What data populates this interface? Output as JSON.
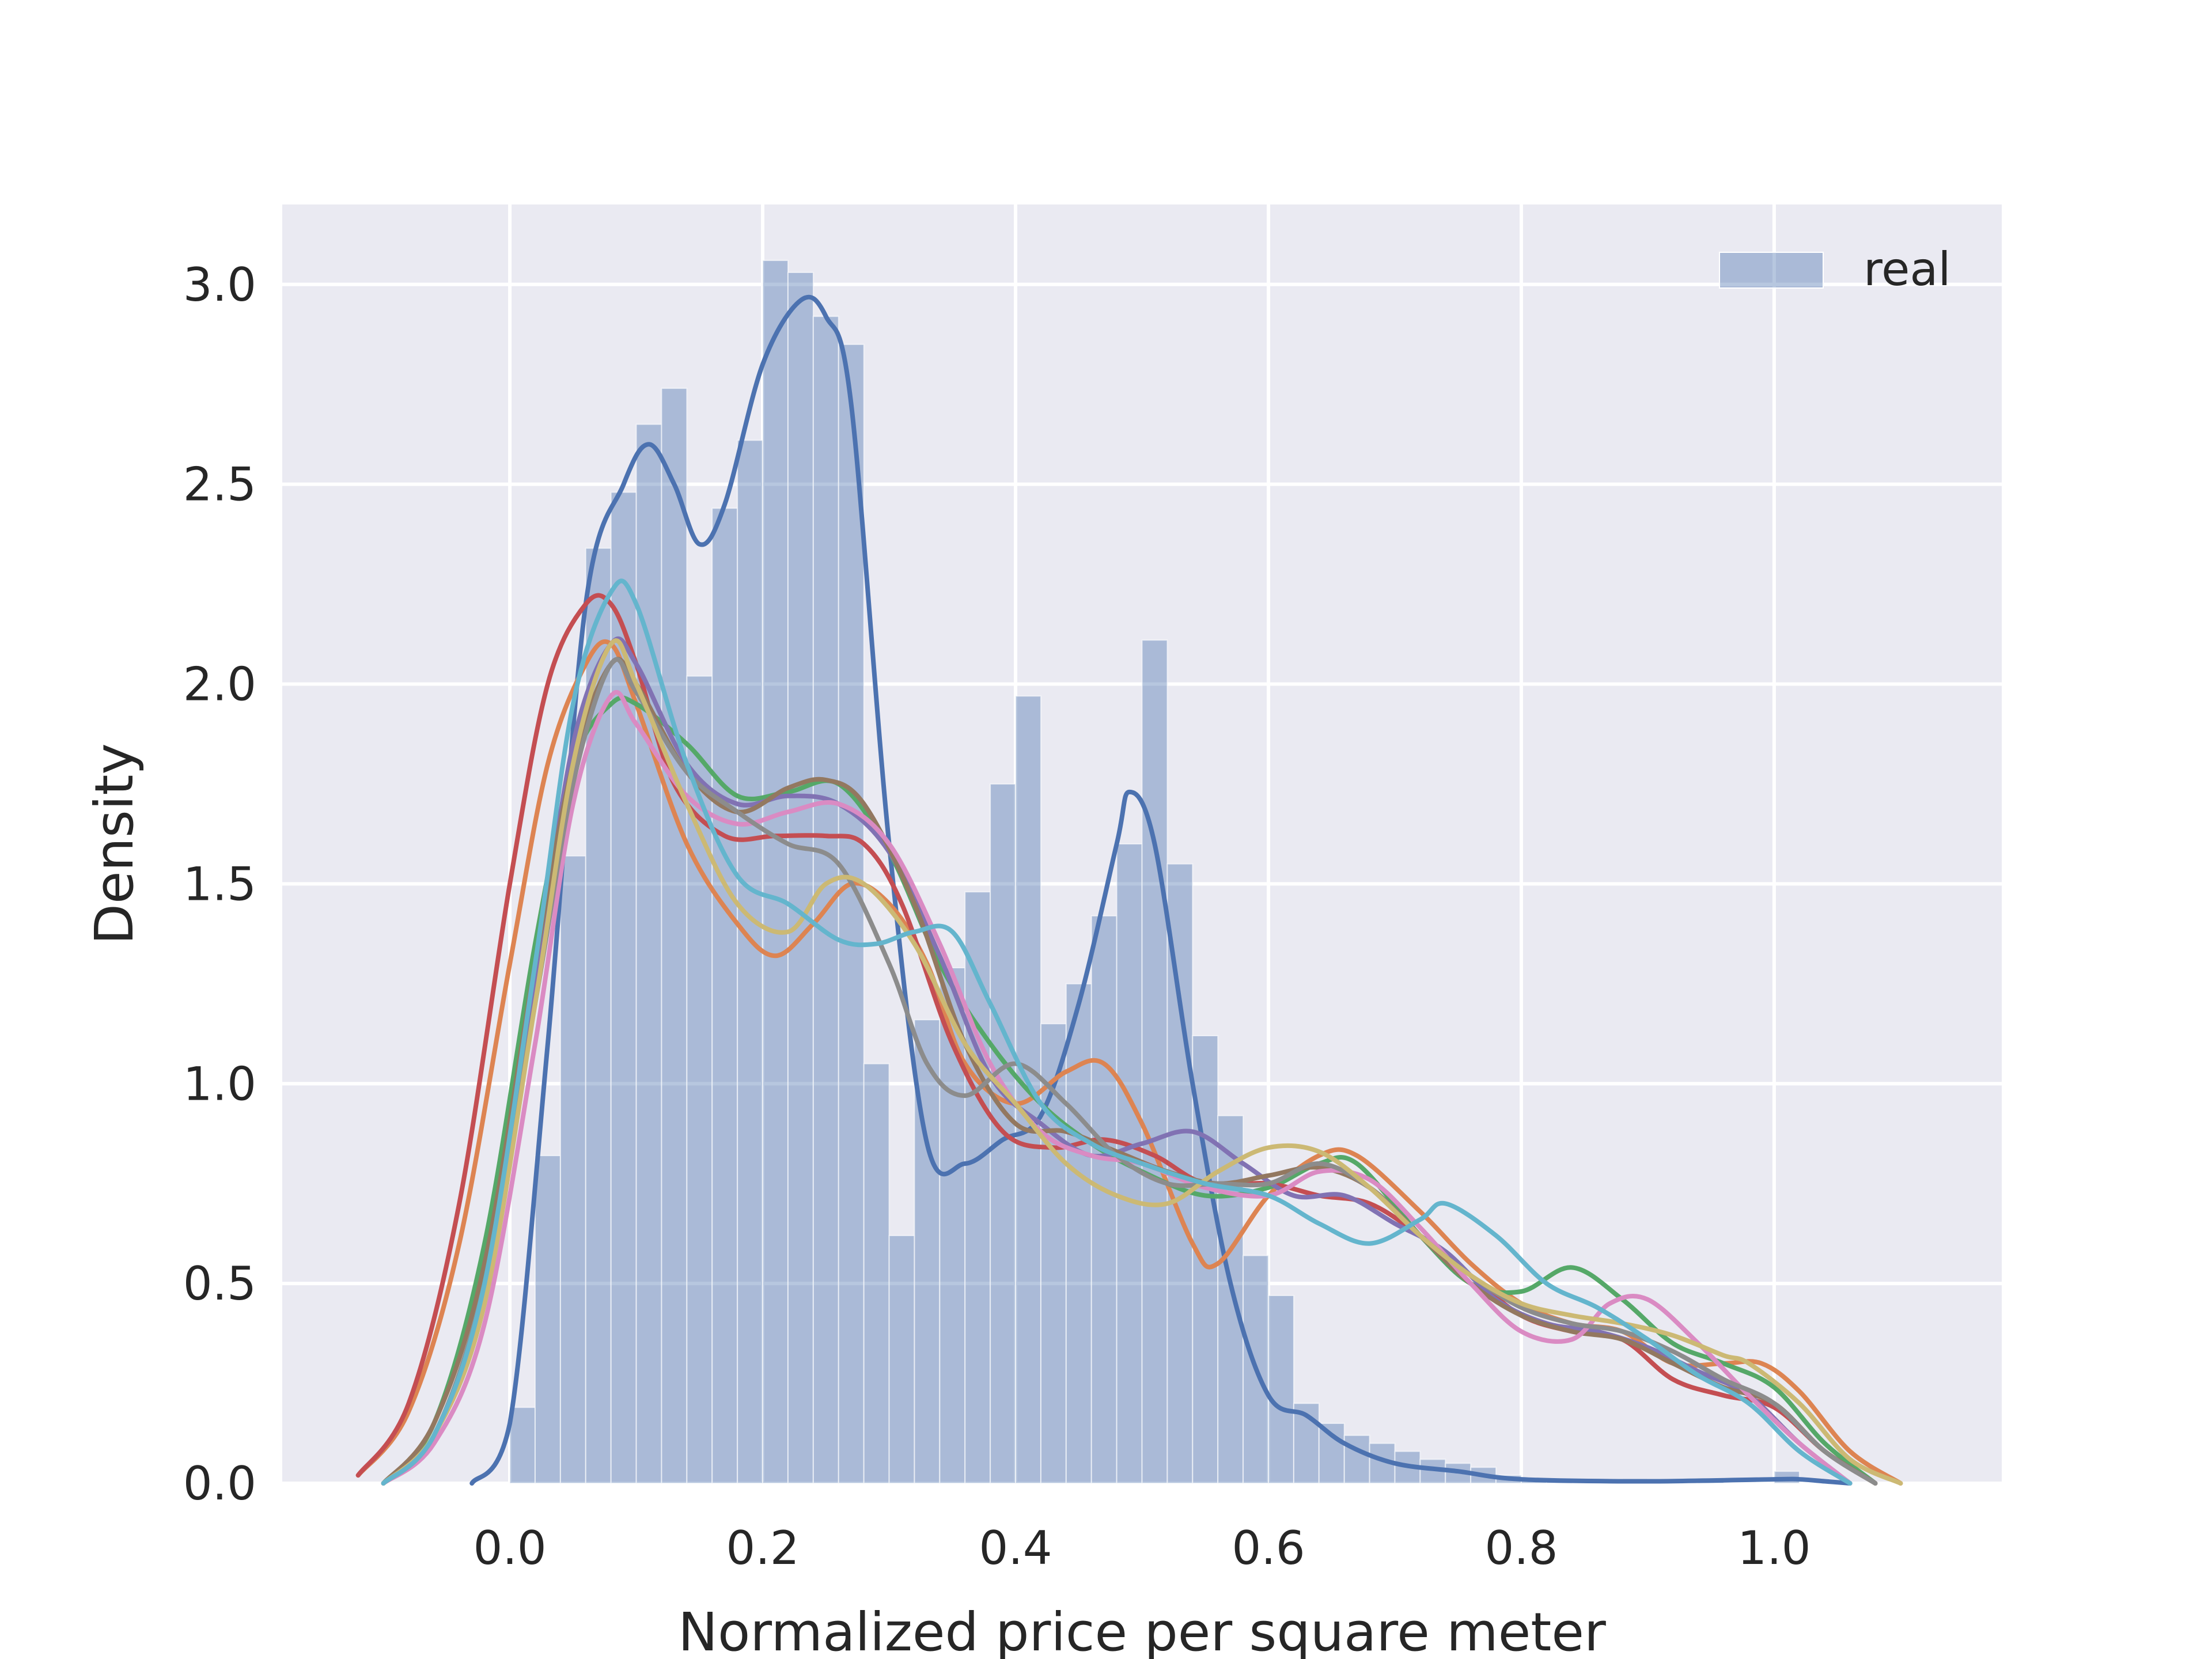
{
  "chart_data": {
    "type": "histogram+kde",
    "title": "",
    "xlabel": "Normalized price per square meter",
    "ylabel": "Density",
    "xlim": [
      -0.18,
      1.18
    ],
    "ylim": [
      0,
      3.2
    ],
    "xticks": [
      0.0,
      0.2,
      0.4,
      0.6,
      0.8,
      1.0
    ],
    "xtick_labels": [
      "0.0",
      "0.2",
      "0.4",
      "0.6",
      "0.8",
      "1.0"
    ],
    "yticks": [
      0.0,
      0.5,
      1.0,
      1.5,
      2.0,
      2.5,
      3.0
    ],
    "ytick_labels": [
      "0.0",
      "0.5",
      "1.0",
      "1.5",
      "2.0",
      "2.5",
      "3.0"
    ],
    "grid": true,
    "background": "#eaeaf2",
    "legend": {
      "position": "top-right",
      "entries": [
        {
          "label": "real",
          "color": "#4c72b0"
        }
      ]
    },
    "histogram": {
      "name": "real",
      "color": "#4c72b0",
      "bin_edges_start": 0.0,
      "bin_width": 0.02,
      "values": [
        0.19,
        0.82,
        1.57,
        2.34,
        2.48,
        2.65,
        2.74,
        2.02,
        2.44,
        2.61,
        3.06,
        3.03,
        2.92,
        2.85,
        1.05,
        0.62,
        1.16,
        1.29,
        1.48,
        1.75,
        1.97,
        1.15,
        1.25,
        1.42,
        1.6,
        2.11,
        1.55,
        1.12,
        0.92,
        0.57,
        0.47,
        0.2,
        0.15,
        0.12,
        0.1,
        0.08,
        0.06,
        0.05,
        0.04,
        0.02,
        0.01,
        0.01,
        0.0,
        0.01,
        0.0,
        0.01,
        0.0,
        0.01,
        0.0,
        0.0,
        0.03
      ]
    },
    "kde_series": [
      {
        "color": "#4c72b0",
        "x": [
          -0.03,
          0.0,
          0.03,
          0.06,
          0.09,
          0.11,
          0.13,
          0.15,
          0.17,
          0.2,
          0.23,
          0.25,
          0.27,
          0.3,
          0.33,
          0.36,
          0.39,
          0.42,
          0.45,
          0.48,
          0.49,
          0.51,
          0.54,
          0.57,
          0.6,
          0.63,
          0.66,
          0.7,
          0.75,
          0.8,
          0.9,
          1.0,
          1.02,
          1.04,
          1.06
        ],
        "y": [
          0.0,
          0.15,
          1.1,
          2.2,
          2.5,
          2.6,
          2.5,
          2.35,
          2.45,
          2.8,
          2.96,
          2.92,
          2.7,
          1.6,
          0.85,
          0.8,
          0.86,
          0.92,
          1.2,
          1.6,
          1.73,
          1.6,
          1.0,
          0.5,
          0.22,
          0.17,
          0.1,
          0.05,
          0.03,
          0.01,
          0.005,
          0.01,
          0.01,
          0.005,
          0.0
        ]
      },
      {
        "color": "#dd8452",
        "x": [
          -0.12,
          -0.08,
          -0.04,
          0.0,
          0.03,
          0.06,
          0.08,
          0.1,
          0.14,
          0.18,
          0.21,
          0.24,
          0.27,
          0.3,
          0.33,
          0.36,
          0.4,
          0.44,
          0.47,
          0.5,
          0.54,
          0.56,
          0.6,
          0.64,
          0.67,
          0.72,
          0.76,
          0.8,
          0.84,
          0.88,
          0.92,
          0.96,
          0.99,
          1.02,
          1.06,
          1.1
        ],
        "y": [
          0.02,
          0.18,
          0.6,
          1.3,
          1.8,
          2.05,
          2.1,
          1.95,
          1.6,
          1.4,
          1.32,
          1.4,
          1.5,
          1.45,
          1.3,
          1.05,
          0.95,
          1.03,
          1.05,
          0.9,
          0.6,
          0.55,
          0.72,
          0.82,
          0.82,
          0.68,
          0.55,
          0.45,
          0.4,
          0.38,
          0.3,
          0.3,
          0.3,
          0.23,
          0.08,
          0.0
        ]
      },
      {
        "color": "#55a868",
        "x": [
          -0.1,
          -0.06,
          -0.02,
          0.02,
          0.05,
          0.08,
          0.1,
          0.14,
          0.18,
          0.22,
          0.26,
          0.3,
          0.34,
          0.38,
          0.42,
          0.46,
          0.5,
          0.55,
          0.6,
          0.64,
          0.67,
          0.72,
          0.76,
          0.8,
          0.84,
          0.88,
          0.92,
          0.96,
          1.0,
          1.04,
          1.08
        ],
        "y": [
          0.0,
          0.15,
          0.6,
          1.35,
          1.8,
          1.95,
          1.95,
          1.85,
          1.72,
          1.73,
          1.75,
          1.58,
          1.3,
          1.1,
          0.95,
          0.85,
          0.78,
          0.72,
          0.74,
          0.8,
          0.8,
          0.62,
          0.5,
          0.48,
          0.54,
          0.46,
          0.35,
          0.3,
          0.24,
          0.1,
          0.0
        ]
      },
      {
        "color": "#c44e52",
        "x": [
          -0.12,
          -0.08,
          -0.04,
          0.0,
          0.03,
          0.06,
          0.08,
          0.1,
          0.13,
          0.17,
          0.21,
          0.25,
          0.28,
          0.31,
          0.35,
          0.39,
          0.43,
          0.47,
          0.51,
          0.55,
          0.6,
          0.64,
          0.68,
          0.72,
          0.76,
          0.8,
          0.84,
          0.88,
          0.92,
          0.96,
          1.0,
          1.04,
          1.08
        ],
        "y": [
          0.02,
          0.2,
          0.7,
          1.5,
          2.0,
          2.2,
          2.2,
          2.05,
          1.75,
          1.62,
          1.62,
          1.62,
          1.6,
          1.45,
          1.1,
          0.88,
          0.84,
          0.86,
          0.82,
          0.75,
          0.75,
          0.72,
          0.7,
          0.62,
          0.52,
          0.42,
          0.38,
          0.36,
          0.26,
          0.22,
          0.19,
          0.08,
          0.0
        ]
      },
      {
        "color": "#8172b3",
        "x": [
          -0.1,
          -0.06,
          -0.02,
          0.02,
          0.05,
          0.08,
          0.1,
          0.14,
          0.18,
          0.22,
          0.26,
          0.3,
          0.34,
          0.38,
          0.42,
          0.46,
          0.5,
          0.54,
          0.58,
          0.62,
          0.66,
          0.7,
          0.74,
          0.78,
          0.82,
          0.86,
          0.9,
          0.94,
          0.98,
          1.02,
          1.06
        ],
        "y": [
          0.0,
          0.12,
          0.5,
          1.25,
          1.85,
          2.1,
          2.05,
          1.8,
          1.7,
          1.72,
          1.7,
          1.58,
          1.32,
          1.02,
          0.9,
          0.82,
          0.85,
          0.88,
          0.8,
          0.72,
          0.72,
          0.65,
          0.58,
          0.46,
          0.4,
          0.38,
          0.34,
          0.28,
          0.22,
          0.1,
          0.0
        ]
      },
      {
        "color": "#937860",
        "x": [
          -0.1,
          -0.06,
          -0.02,
          0.02,
          0.05,
          0.08,
          0.1,
          0.14,
          0.18,
          0.22,
          0.25,
          0.28,
          0.32,
          0.36,
          0.4,
          0.44,
          0.48,
          0.52,
          0.56,
          0.6,
          0.64,
          0.68,
          0.72,
          0.76,
          0.8,
          0.84,
          0.88,
          0.92,
          0.96,
          1.0,
          1.04,
          1.08
        ],
        "y": [
          0.0,
          0.15,
          0.55,
          1.3,
          1.8,
          2.05,
          2.0,
          1.78,
          1.68,
          1.74,
          1.76,
          1.7,
          1.45,
          1.1,
          0.9,
          0.88,
          0.83,
          0.78,
          0.75,
          0.77,
          0.79,
          0.74,
          0.62,
          0.5,
          0.42,
          0.38,
          0.36,
          0.3,
          0.24,
          0.2,
          0.08,
          0.0
        ]
      },
      {
        "color": "#da8bc3",
        "x": [
          -0.1,
          -0.06,
          -0.02,
          0.02,
          0.05,
          0.08,
          0.1,
          0.14,
          0.18,
          0.22,
          0.26,
          0.3,
          0.34,
          0.38,
          0.42,
          0.46,
          0.5,
          0.55,
          0.6,
          0.64,
          0.68,
          0.72,
          0.76,
          0.8,
          0.84,
          0.87,
          0.9,
          0.94,
          0.98,
          1.02,
          1.06
        ],
        "y": [
          0.0,
          0.1,
          0.4,
          1.1,
          1.7,
          1.97,
          1.9,
          1.72,
          1.65,
          1.68,
          1.7,
          1.6,
          1.35,
          1.05,
          0.88,
          0.82,
          0.8,
          0.74,
          0.72,
          0.78,
          0.76,
          0.64,
          0.5,
          0.38,
          0.36,
          0.45,
          0.46,
          0.35,
          0.22,
          0.1,
          0.0
        ]
      },
      {
        "color": "#8c8c8c",
        "x": [
          -0.1,
          -0.06,
          -0.02,
          0.02,
          0.05,
          0.08,
          0.1,
          0.14,
          0.18,
          0.22,
          0.26,
          0.3,
          0.33,
          0.36,
          0.4,
          0.44,
          0.48,
          0.52,
          0.56,
          0.6,
          0.64,
          0.68,
          0.72,
          0.76,
          0.8,
          0.84,
          0.88,
          0.92,
          0.96,
          1.0,
          1.04,
          1.08
        ],
        "y": [
          0.0,
          0.12,
          0.5,
          1.2,
          1.75,
          2.05,
          1.98,
          1.78,
          1.68,
          1.6,
          1.55,
          1.3,
          1.05,
          0.97,
          1.05,
          0.95,
          0.82,
          0.75,
          0.75,
          0.75,
          0.8,
          0.74,
          0.62,
          0.52,
          0.44,
          0.4,
          0.38,
          0.33,
          0.26,
          0.2,
          0.08,
          0.0
        ]
      },
      {
        "color": "#ccb974",
        "x": [
          -0.1,
          -0.06,
          -0.02,
          0.02,
          0.05,
          0.08,
          0.1,
          0.14,
          0.18,
          0.22,
          0.25,
          0.28,
          0.32,
          0.36,
          0.4,
          0.44,
          0.48,
          0.52,
          0.56,
          0.6,
          0.64,
          0.68,
          0.72,
          0.76,
          0.8,
          0.84,
          0.88,
          0.92,
          0.96,
          0.98,
          1.02,
          1.06,
          1.1
        ],
        "y": [
          0.0,
          0.12,
          0.45,
          1.2,
          1.8,
          2.1,
          2.0,
          1.7,
          1.45,
          1.38,
          1.5,
          1.5,
          1.35,
          1.1,
          0.95,
          0.8,
          0.72,
          0.7,
          0.78,
          0.84,
          0.83,
          0.74,
          0.62,
          0.52,
          0.45,
          0.42,
          0.4,
          0.37,
          0.32,
          0.3,
          0.2,
          0.06,
          0.0
        ]
      },
      {
        "color": "#64b5cd",
        "x": [
          -0.1,
          -0.06,
          -0.02,
          0.02,
          0.05,
          0.08,
          0.1,
          0.14,
          0.18,
          0.22,
          0.26,
          0.29,
          0.32,
          0.35,
          0.38,
          0.42,
          0.46,
          0.5,
          0.55,
          0.6,
          0.64,
          0.68,
          0.72,
          0.74,
          0.78,
          0.82,
          0.86,
          0.9,
          0.94,
          0.98,
          1.02,
          1.06
        ],
        "y": [
          0.0,
          0.12,
          0.5,
          1.3,
          1.95,
          2.23,
          2.2,
          1.8,
          1.52,
          1.45,
          1.36,
          1.35,
          1.38,
          1.38,
          1.2,
          0.95,
          0.85,
          0.8,
          0.75,
          0.72,
          0.65,
          0.6,
          0.66,
          0.7,
          0.62,
          0.5,
          0.44,
          0.36,
          0.27,
          0.2,
          0.08,
          0.0
        ]
      }
    ]
  }
}
